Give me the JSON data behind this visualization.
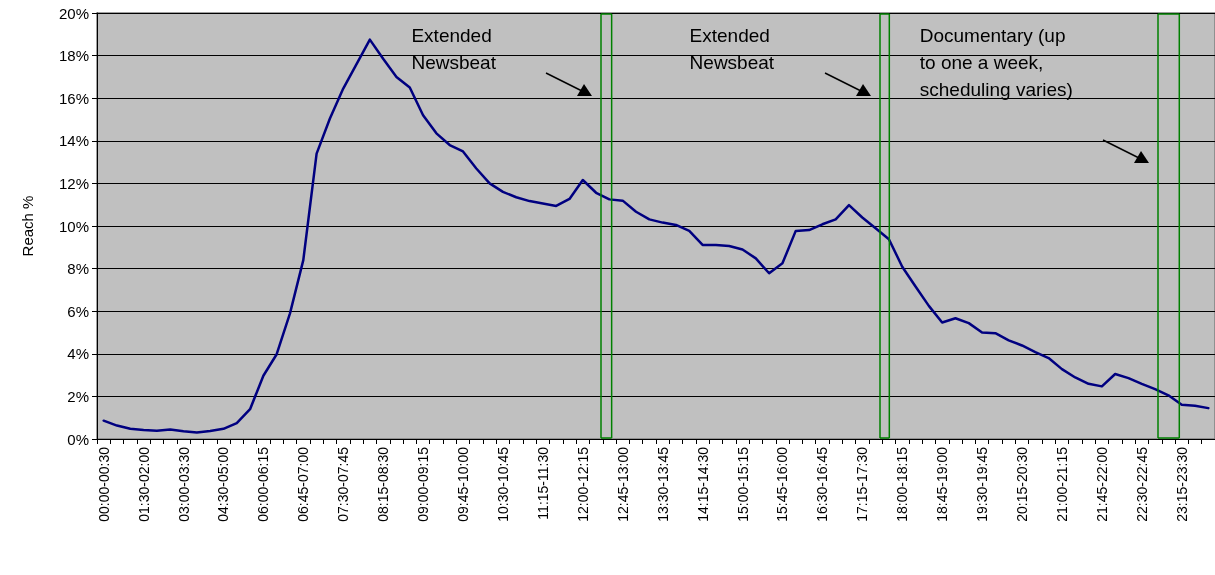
{
  "chart_data": {
    "type": "line",
    "ylabel": "Reach %",
    "categories": [
      "00:00-00:30",
      null,
      null,
      "01:30-02:00",
      null,
      null,
      "03:00-03:30",
      null,
      null,
      "04:30-05:00",
      null,
      null,
      "06:00-06:15",
      null,
      null,
      "06:45-07:00",
      null,
      null,
      "07:30-07:45",
      null,
      null,
      "08:15-08:30",
      null,
      null,
      "09:00-09:15",
      null,
      null,
      "09:45-10:00",
      null,
      null,
      "10:30-10:45",
      null,
      null,
      "11:15-11:30",
      null,
      null,
      "12:00-12:15",
      null,
      null,
      "12:45-13:00",
      null,
      null,
      "13:30-13:45",
      null,
      null,
      "14:15-14:30",
      null,
      null,
      "15:00-15:15",
      null,
      null,
      "15:45-16:00",
      null,
      null,
      "16:30-16:45",
      null,
      null,
      "17:15-17:30",
      null,
      null,
      "18:00-18:15",
      null,
      null,
      "18:45-19:00",
      null,
      null,
      "19:30-19:45",
      null,
      null,
      "20:15-20:30",
      null,
      null,
      "21:00-21:15",
      null,
      null,
      "21:45-22:00",
      null,
      null,
      "22:30-22:45",
      null,
      null,
      "23:15-23:30",
      null,
      null
    ],
    "series": [
      {
        "color": "#000080",
        "values": [
          0.86,
          0.63,
          0.48,
          0.42,
          0.39,
          0.45,
          0.36,
          0.3,
          0.38,
          0.48,
          0.75,
          1.4,
          2.97,
          3.98,
          5.9,
          8.4,
          13.4,
          15.05,
          16.45,
          17.6,
          18.75,
          17.85,
          17.0,
          16.5,
          15.2,
          14.35,
          13.8,
          13.5,
          12.7,
          12.0,
          11.6,
          11.35,
          11.17,
          11.06,
          10.94,
          11.27,
          12.16,
          11.56,
          11.25,
          11.19,
          10.67,
          10.31,
          10.16,
          10.05,
          9.77,
          9.11,
          9.11,
          9.06,
          8.9,
          8.48,
          7.78,
          8.25,
          9.77,
          9.81,
          10.08,
          10.31,
          10.98,
          10.4,
          9.89,
          9.38,
          8.09,
          7.16,
          6.25,
          5.47,
          5.67,
          5.44,
          5.0,
          4.97,
          4.63,
          4.39,
          4.08,
          3.8,
          3.28,
          2.89,
          2.59,
          2.47,
          3.05,
          2.86,
          2.59,
          2.34,
          2.05,
          1.61,
          1.56,
          1.45
        ]
      }
    ],
    "ylim": [
      0,
      20
    ],
    "yticks": [
      {
        "value": 0,
        "label": "0%"
      },
      {
        "value": 2,
        "label": "2%"
      },
      {
        "value": 4,
        "label": "4%"
      },
      {
        "value": 6,
        "label": "6%"
      },
      {
        "value": 8,
        "label": "8%"
      },
      {
        "value": 10,
        "label": "10%"
      },
      {
        "value": 12,
        "label": "12%"
      },
      {
        "value": 14,
        "label": "14%"
      },
      {
        "value": 16,
        "label": "16%"
      },
      {
        "value": 18,
        "label": "18%"
      },
      {
        "value": 20,
        "label": "20%"
      }
    ],
    "annotations": [
      "Extended\nNewsbeat",
      "Extended\nNewsbeat",
      "Documentary (up\nto one a week,\nscheduling varies)"
    ],
    "grid": "y",
    "marker": "none",
    "line_style": "solid"
  }
}
